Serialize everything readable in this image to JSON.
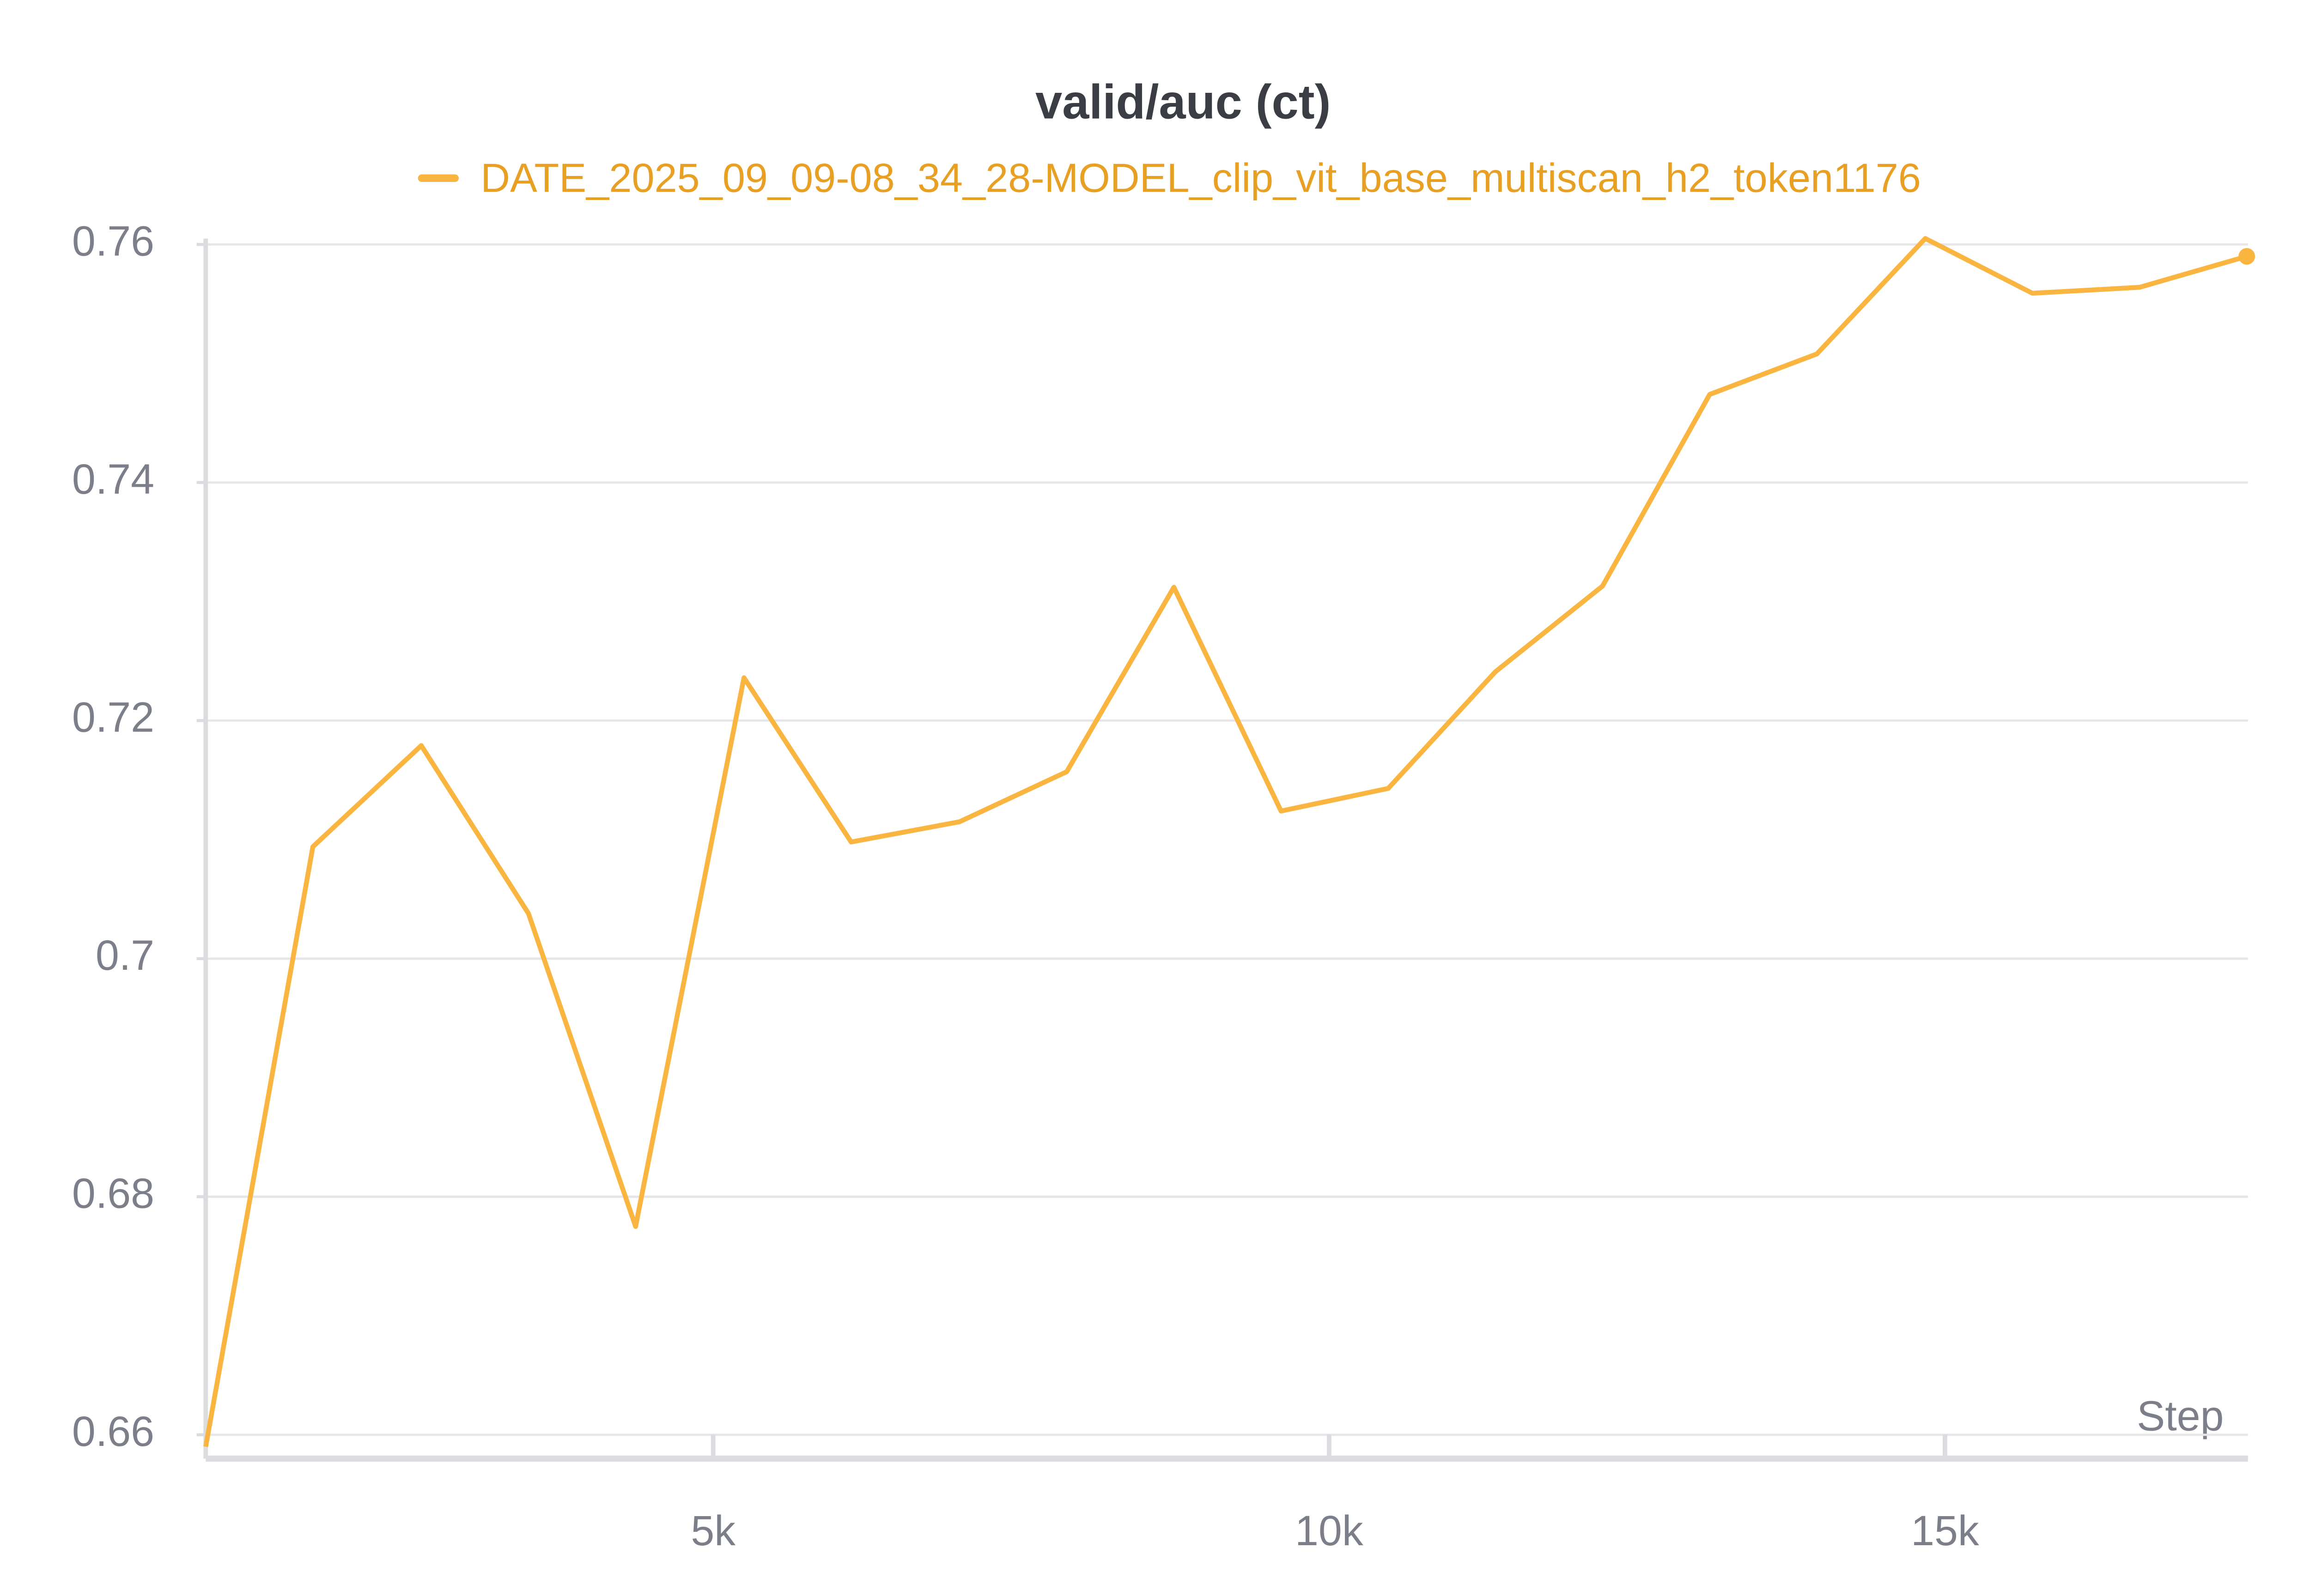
{
  "chart_data": {
    "type": "line",
    "title": "valid/auc (ct)",
    "x_label": "Step",
    "x": [
      880,
      1750,
      2630,
      3500,
      4370,
      5250,
      6120,
      7000,
      7870,
      8740,
      9610,
      10480,
      11350,
      12220,
      13090,
      13960,
      14840,
      15710,
      16580,
      17450
    ],
    "series": [
      {
        "name": "DATE_2025_09_09-08_34_28-MODEL_clip_vit_base_multiscan_h2_token1176",
        "color": "#f9b53f",
        "values": [
          0.659,
          0.7094,
          0.7179,
          0.7038,
          0.6775,
          0.7236,
          0.7098,
          0.7115,
          0.7157,
          0.7312,
          0.7124,
          0.7143,
          0.7241,
          0.7313,
          0.7474,
          0.7508,
          0.7605,
          0.7559,
          0.7564,
          0.759
        ]
      }
    ],
    "xlim": [
      880,
      17460
    ],
    "ylim": [
      0.658,
      0.761
    ],
    "xticks": [
      {
        "value": 5000,
        "label": "5k"
      },
      {
        "value": 10000,
        "label": "10k"
      },
      {
        "value": 15000,
        "label": "15k"
      }
    ],
    "yticks": [
      0.66,
      0.68,
      0.7,
      0.72,
      0.74,
      0.76
    ],
    "grid": true
  }
}
